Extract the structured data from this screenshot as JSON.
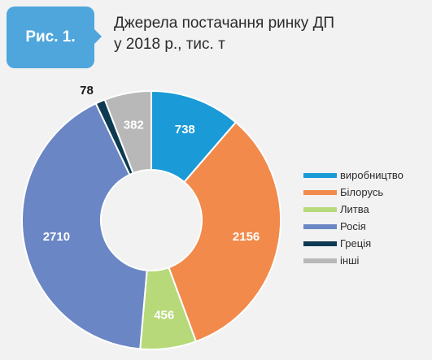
{
  "figure_label": "Рис. 1.",
  "title_line1": "Джерела постачання ринку ДП",
  "title_line2": "у 2018 р., тис. т",
  "chart_data": {
    "type": "pie",
    "donut": true,
    "categories": [
      "виробництво",
      "Білорусь",
      "Литва",
      "Росія",
      "Греція",
      "інші"
    ],
    "values": [
      738,
      2156,
      456,
      2710,
      78,
      382
    ],
    "colors": [
      "#1a9ad6",
      "#f28a4b",
      "#b7d97a",
      "#6a86c4",
      "#0d3a52",
      "#b8b8b8"
    ],
    "legend_position": "right"
  }
}
